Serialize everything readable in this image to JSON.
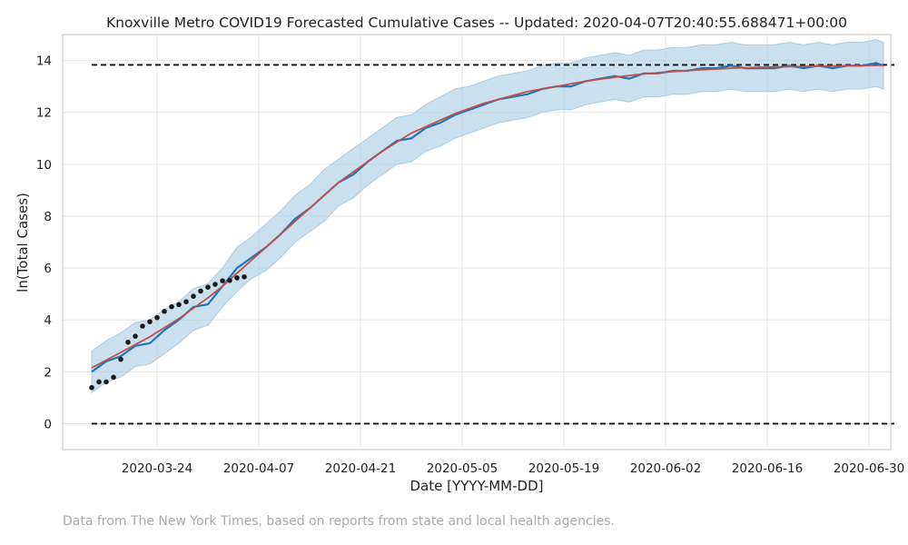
{
  "chart_data": {
    "type": "line",
    "title": "Knoxville Metro COVID19 Forecasted Cumulative Cases -- Updated: 2020-04-07T20:40:55.688471+00:00",
    "xlabel": "Date [YYYY-MM-DD]",
    "ylabel": "ln(Total Cases)",
    "x_start": "2020-03-15",
    "x_end": "2020-07-02",
    "xlim": [
      "2020-03-11",
      "2020-07-03"
    ],
    "ylim": [
      -1.0,
      15.0
    ],
    "x_ticks": [
      "2020-03-24",
      "2020-04-07",
      "2020-04-21",
      "2020-05-05",
      "2020-05-19",
      "2020-06-02",
      "2020-06-16",
      "2020-06-30"
    ],
    "y_ticks": [
      0,
      2,
      4,
      6,
      8,
      10,
      12,
      14
    ],
    "grid": true,
    "legend": "none",
    "colors": {
      "forecast": "#1f77b4",
      "fit": "#c0504d",
      "band": "#a9cce3",
      "observed": "#1a1a1a",
      "reference": "#111111"
    },
    "series": [
      {
        "kind": "reference-line",
        "values": [
          13.83
        ]
      },
      {
        "kind": "reference-line",
        "values": [
          0.0
        ]
      },
      {
        "kind": "observed",
        "x": [
          "2020-03-15",
          "2020-03-16",
          "2020-03-17",
          "2020-03-18",
          "2020-03-19",
          "2020-03-20",
          "2020-03-21",
          "2020-03-22",
          "2020-03-23",
          "2020-03-24",
          "2020-03-25",
          "2020-03-26",
          "2020-03-27",
          "2020-03-28",
          "2020-03-29",
          "2020-03-30",
          "2020-03-31",
          "2020-04-01",
          "2020-04-02",
          "2020-04-03",
          "2020-04-04",
          "2020-04-05"
        ],
        "values": [
          1.39,
          1.61,
          1.61,
          1.79,
          2.48,
          3.14,
          3.37,
          3.76,
          3.93,
          4.09,
          4.33,
          4.51,
          4.59,
          4.7,
          4.91,
          5.11,
          5.26,
          5.37,
          5.51,
          5.52,
          5.62,
          5.66
        ]
      },
      {
        "kind": "forecast",
        "x": [
          "2020-03-15",
          "2020-03-17",
          "2020-03-19",
          "2020-03-21",
          "2020-03-23",
          "2020-03-25",
          "2020-03-27",
          "2020-03-29",
          "2020-03-31",
          "2020-04-02",
          "2020-04-04",
          "2020-04-06",
          "2020-04-08",
          "2020-04-10",
          "2020-04-12",
          "2020-04-14",
          "2020-04-16",
          "2020-04-18",
          "2020-04-20",
          "2020-04-22",
          "2020-04-24",
          "2020-04-26",
          "2020-04-28",
          "2020-04-30",
          "2020-05-02",
          "2020-05-04",
          "2020-05-06",
          "2020-05-08",
          "2020-05-10",
          "2020-05-12",
          "2020-05-14",
          "2020-05-16",
          "2020-05-18",
          "2020-05-20",
          "2020-05-22",
          "2020-05-24",
          "2020-05-26",
          "2020-05-28",
          "2020-05-30",
          "2020-06-01",
          "2020-06-03",
          "2020-06-05",
          "2020-06-07",
          "2020-06-09",
          "2020-06-11",
          "2020-06-13",
          "2020-06-15",
          "2020-06-17",
          "2020-06-19",
          "2020-06-21",
          "2020-06-23",
          "2020-06-25",
          "2020-06-27",
          "2020-06-29",
          "2020-07-01",
          "2020-07-02"
        ],
        "values": [
          2.0,
          2.4,
          2.6,
          3.0,
          3.1,
          3.6,
          4.0,
          4.5,
          4.6,
          5.3,
          6.0,
          6.4,
          6.8,
          7.3,
          7.9,
          8.3,
          8.8,
          9.3,
          9.6,
          10.1,
          10.5,
          10.9,
          11.0,
          11.4,
          11.6,
          11.9,
          12.1,
          12.3,
          12.5,
          12.6,
          12.7,
          12.9,
          13.0,
          13.0,
          13.2,
          13.3,
          13.4,
          13.3,
          13.5,
          13.5,
          13.6,
          13.6,
          13.7,
          13.7,
          13.8,
          13.7,
          13.7,
          13.7,
          13.8,
          13.7,
          13.8,
          13.7,
          13.8,
          13.8,
          13.9,
          13.8
        ]
      },
      {
        "kind": "fit",
        "x": [
          "2020-03-15",
          "2020-03-17",
          "2020-03-19",
          "2020-03-21",
          "2020-03-23",
          "2020-03-25",
          "2020-03-27",
          "2020-03-29",
          "2020-03-31",
          "2020-04-02",
          "2020-04-04",
          "2020-04-06",
          "2020-04-08",
          "2020-04-10",
          "2020-04-12",
          "2020-04-14",
          "2020-04-16",
          "2020-04-18",
          "2020-04-20",
          "2020-04-22",
          "2020-04-24",
          "2020-04-26",
          "2020-04-28",
          "2020-04-30",
          "2020-05-02",
          "2020-05-04",
          "2020-05-06",
          "2020-05-08",
          "2020-05-10",
          "2020-05-12",
          "2020-05-14",
          "2020-05-16",
          "2020-05-18",
          "2020-05-20",
          "2020-05-22",
          "2020-05-24",
          "2020-05-26",
          "2020-05-28",
          "2020-05-30",
          "2020-06-01",
          "2020-06-03",
          "2020-06-05",
          "2020-06-07",
          "2020-06-09",
          "2020-06-11",
          "2020-06-13",
          "2020-06-15",
          "2020-06-17",
          "2020-06-19",
          "2020-06-21",
          "2020-06-23",
          "2020-06-25",
          "2020-06-27",
          "2020-06-29",
          "2020-07-01",
          "2020-07-02"
        ],
        "values": [
          2.15,
          2.45,
          2.75,
          3.05,
          3.35,
          3.7,
          4.05,
          4.45,
          4.85,
          5.3,
          5.8,
          6.3,
          6.8,
          7.3,
          7.8,
          8.3,
          8.8,
          9.3,
          9.7,
          10.1,
          10.5,
          10.85,
          11.2,
          11.45,
          11.7,
          11.95,
          12.15,
          12.35,
          12.5,
          12.65,
          12.8,
          12.9,
          13.0,
          13.1,
          13.2,
          13.28,
          13.35,
          13.42,
          13.48,
          13.53,
          13.57,
          13.61,
          13.64,
          13.67,
          13.7,
          13.72,
          13.74,
          13.75,
          13.76,
          13.77,
          13.78,
          13.79,
          13.8,
          13.8,
          13.81,
          13.81
        ]
      },
      {
        "kind": "uncertainty-band",
        "x": [
          "2020-03-15",
          "2020-03-17",
          "2020-03-19",
          "2020-03-21",
          "2020-03-23",
          "2020-03-25",
          "2020-03-27",
          "2020-03-29",
          "2020-03-31",
          "2020-04-02",
          "2020-04-04",
          "2020-04-06",
          "2020-04-08",
          "2020-04-10",
          "2020-04-12",
          "2020-04-14",
          "2020-04-16",
          "2020-04-18",
          "2020-04-20",
          "2020-04-22",
          "2020-04-24",
          "2020-04-26",
          "2020-04-28",
          "2020-04-30",
          "2020-05-02",
          "2020-05-04",
          "2020-05-06",
          "2020-05-08",
          "2020-05-10",
          "2020-05-12",
          "2020-05-14",
          "2020-05-16",
          "2020-05-18",
          "2020-05-20",
          "2020-05-22",
          "2020-05-24",
          "2020-05-26",
          "2020-05-28",
          "2020-05-30",
          "2020-06-01",
          "2020-06-03",
          "2020-06-05",
          "2020-06-07",
          "2020-06-09",
          "2020-06-11",
          "2020-06-13",
          "2020-06-15",
          "2020-06-17",
          "2020-06-19",
          "2020-06-21",
          "2020-06-23",
          "2020-06-25",
          "2020-06-27",
          "2020-06-29",
          "2020-07-01",
          "2020-07-02"
        ],
        "upper": [
          2.8,
          3.2,
          3.5,
          3.9,
          4.0,
          4.4,
          4.7,
          5.2,
          5.4,
          6.0,
          6.8,
          7.2,
          7.7,
          8.2,
          8.8,
          9.2,
          9.8,
          10.2,
          10.6,
          11.0,
          11.4,
          11.8,
          11.9,
          12.3,
          12.6,
          12.9,
          13.0,
          13.2,
          13.4,
          13.5,
          13.6,
          13.8,
          13.9,
          13.9,
          14.1,
          14.2,
          14.3,
          14.2,
          14.4,
          14.4,
          14.5,
          14.5,
          14.6,
          14.6,
          14.7,
          14.6,
          14.6,
          14.6,
          14.7,
          14.6,
          14.7,
          14.6,
          14.7,
          14.7,
          14.8,
          14.7
        ],
        "lower": [
          1.2,
          1.6,
          1.8,
          2.2,
          2.3,
          2.7,
          3.1,
          3.6,
          3.8,
          4.5,
          5.1,
          5.6,
          5.9,
          6.4,
          7.0,
          7.4,
          7.8,
          8.4,
          8.7,
          9.2,
          9.6,
          10.0,
          10.1,
          10.5,
          10.7,
          11.0,
          11.2,
          11.4,
          11.6,
          11.7,
          11.8,
          12.0,
          12.1,
          12.1,
          12.3,
          12.4,
          12.5,
          12.4,
          12.6,
          12.6,
          12.7,
          12.7,
          12.8,
          12.8,
          12.9,
          12.8,
          12.8,
          12.8,
          12.9,
          12.8,
          12.9,
          12.8,
          12.9,
          12.9,
          13.0,
          12.9
        ]
      }
    ]
  },
  "footnote": "Data from The New York Times, based on reports from state and local health agencies."
}
